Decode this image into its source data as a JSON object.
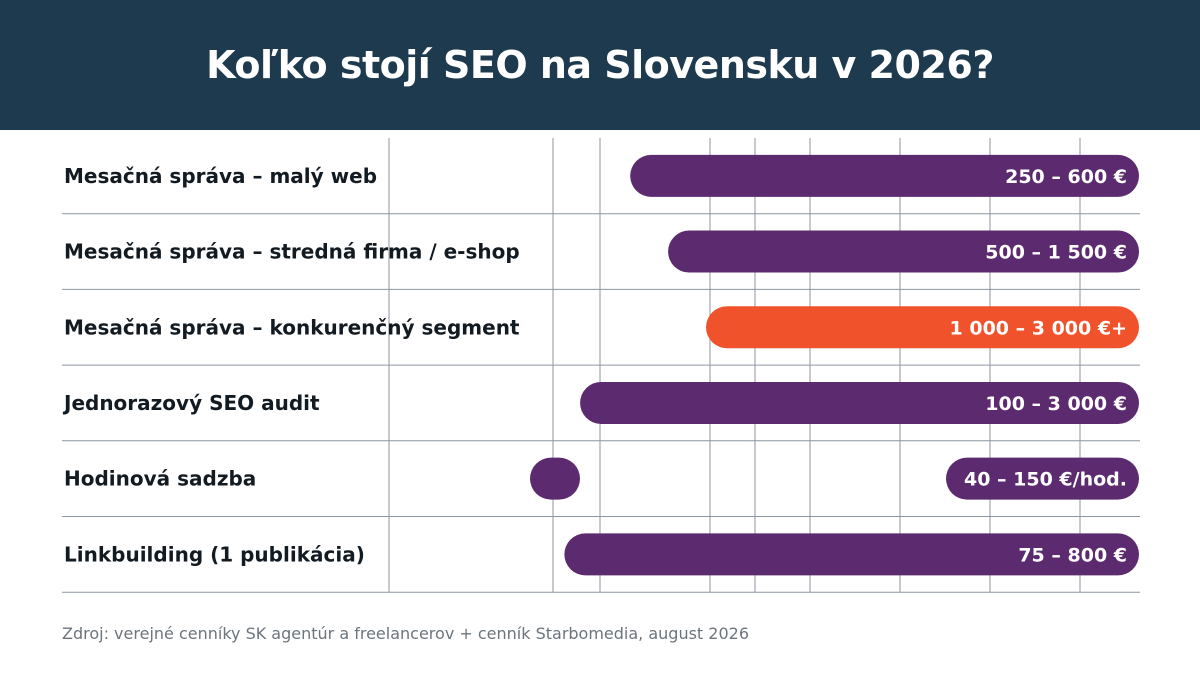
{
  "header": {
    "title": "Koľko stojí SEO na Slovensku v 2026?"
  },
  "colors": {
    "header_bg": "#1d3a4f",
    "bar_default": "#5c2a6f",
    "bar_highlight": "#f0532b",
    "grid": "#8d96a2"
  },
  "chart_data": {
    "type": "bar",
    "orientation": "horizontal-range",
    "title": "Koľko stojí SEO na Slovensku v 2026?",
    "grid": true,
    "rows": [
      {
        "category": "Mesačná správa – malý web",
        "label": "250 – 600 €",
        "min": 250,
        "max": 600,
        "highlight": false
      },
      {
        "category": "Mesačná správa – stredná firma / e-shop",
        "label": "500 – 1 500 €",
        "min": 500,
        "max": 1500,
        "highlight": false
      },
      {
        "category": "Mesačná správa – konkurenčný segment",
        "label": "1 000 – 3 000 €+",
        "min": 1000,
        "max": 3000,
        "highlight": true
      },
      {
        "category": "Jednorazový SEO audit",
        "label": "100 – 3 000 €",
        "min": 100,
        "max": 3000,
        "highlight": false
      },
      {
        "category": "Hodinová sadzba",
        "label": "40 – 150 €/hod.",
        "min": 40,
        "max": 150,
        "highlight": false
      },
      {
        "category": "Linkbuilding (1 publikácia)",
        "label": "75 – 800 €",
        "min": 75,
        "max": 800,
        "highlight": false
      }
    ],
    "source": "Zdroj: verejné cenníky SK agentúr a freelancerov + cenník Starbomedia, august 2026"
  }
}
